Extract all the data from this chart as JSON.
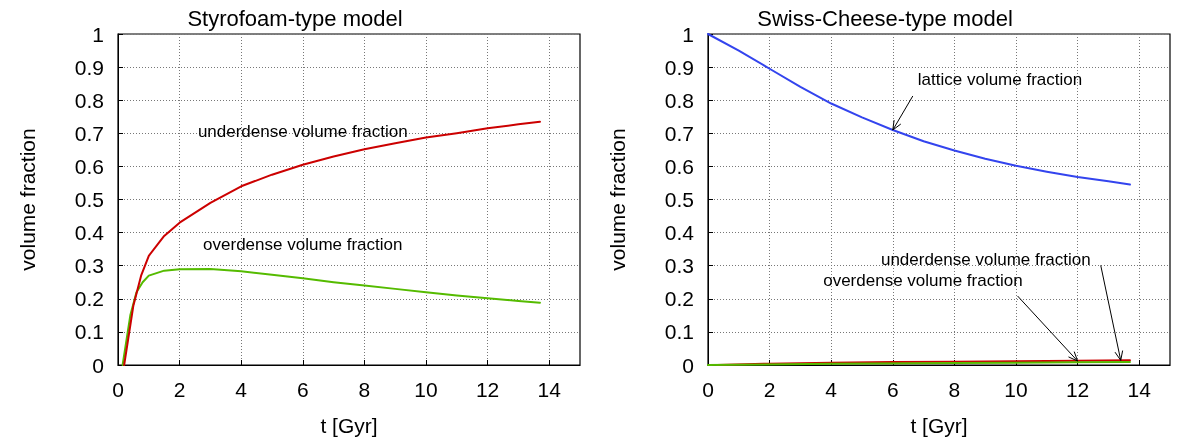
{
  "chart_data": [
    {
      "type": "line",
      "title": "Styrofoam-type model",
      "xlabel": "t [Gyr]",
      "ylabel": "volume fraction",
      "xlim": [
        0,
        15
      ],
      "xticks": [
        0,
        2,
        4,
        6,
        8,
        10,
        12,
        14
      ],
      "ylim": [
        0,
        1
      ],
      "yticks": [
        0,
        0.1,
        0.2,
        0.3,
        0.4,
        0.5,
        0.6,
        0.7,
        0.8,
        0.9,
        1
      ],
      "grid": true,
      "legend": false,
      "marker": "none",
      "line_style": "solid",
      "series": [
        {
          "name": "underdense volume fraction",
          "color": "#cc0000",
          "x": [
            0.2,
            0.5,
            0.75,
            1,
            1.5,
            2,
            3,
            4,
            5,
            6,
            7,
            8,
            9,
            10,
            11,
            12,
            13,
            13.7
          ],
          "values": [
            0,
            0.18,
            0.27,
            0.33,
            0.39,
            0.43,
            0.49,
            0.54,
            0.575,
            0.605,
            0.63,
            0.652,
            0.67,
            0.687,
            0.7,
            0.715,
            0.727,
            0.735
          ]
        },
        {
          "name": "overdense volume fraction",
          "color": "#55bb00",
          "x": [
            0.15,
            0.4,
            0.6,
            0.8,
            1,
            1.5,
            2,
            3,
            4,
            5,
            6,
            7,
            8,
            9,
            10,
            11,
            12,
            13,
            13.7
          ],
          "values": [
            0,
            0.15,
            0.22,
            0.25,
            0.27,
            0.285,
            0.289,
            0.29,
            0.283,
            0.273,
            0.262,
            0.25,
            0.24,
            0.23,
            0.22,
            0.21,
            0.202,
            0.193,
            0.188
          ]
        }
      ]
    },
    {
      "type": "line",
      "title": "Swiss-Cheese-type model",
      "xlabel": "t [Gyr]",
      "ylabel": "volume fraction",
      "xlim": [
        0,
        15
      ],
      "xticks": [
        0,
        2,
        4,
        6,
        8,
        10,
        12,
        14
      ],
      "ylim": [
        0,
        1
      ],
      "yticks": [
        0,
        0.1,
        0.2,
        0.3,
        0.4,
        0.5,
        0.6,
        0.7,
        0.8,
        0.9,
        1
      ],
      "grid": true,
      "legend": false,
      "marker": "none",
      "line_style": "solid",
      "annotations": [
        {
          "text": "lattice volume fraction",
          "x": 6,
          "y": 0.71
        },
        {
          "text": "underdense volume fraction",
          "x": 13.4,
          "y": 0.014
        },
        {
          "text": "overdense volume fraction",
          "x": 12,
          "y": 0.012
        }
      ],
      "series": [
        {
          "color": "#3344ee",
          "x": [
            0,
            1,
            2,
            3,
            4,
            5,
            6,
            7,
            8,
            9,
            10,
            11,
            12,
            13,
            13.7
          ],
          "values": [
            1,
            0.95,
            0.895,
            0.84,
            0.79,
            0.748,
            0.71,
            0.676,
            0.648,
            0.623,
            0.602,
            0.584,
            0.568,
            0.555,
            0.545
          ]
        },
        {
          "color": "#55bb00",
          "x": [
            0,
            4,
            8,
            12,
            13.7
          ],
          "values": [
            0,
            0.004,
            0.006,
            0.008,
            0.009
          ]
        },
        {
          "color": "#cc0000",
          "x": [
            0.3,
            2,
            4,
            6,
            8,
            10,
            12,
            13.7
          ],
          "values": [
            0,
            0.004,
            0.007,
            0.009,
            0.01,
            0.011,
            0.013,
            0.014
          ]
        }
      ]
    }
  ]
}
